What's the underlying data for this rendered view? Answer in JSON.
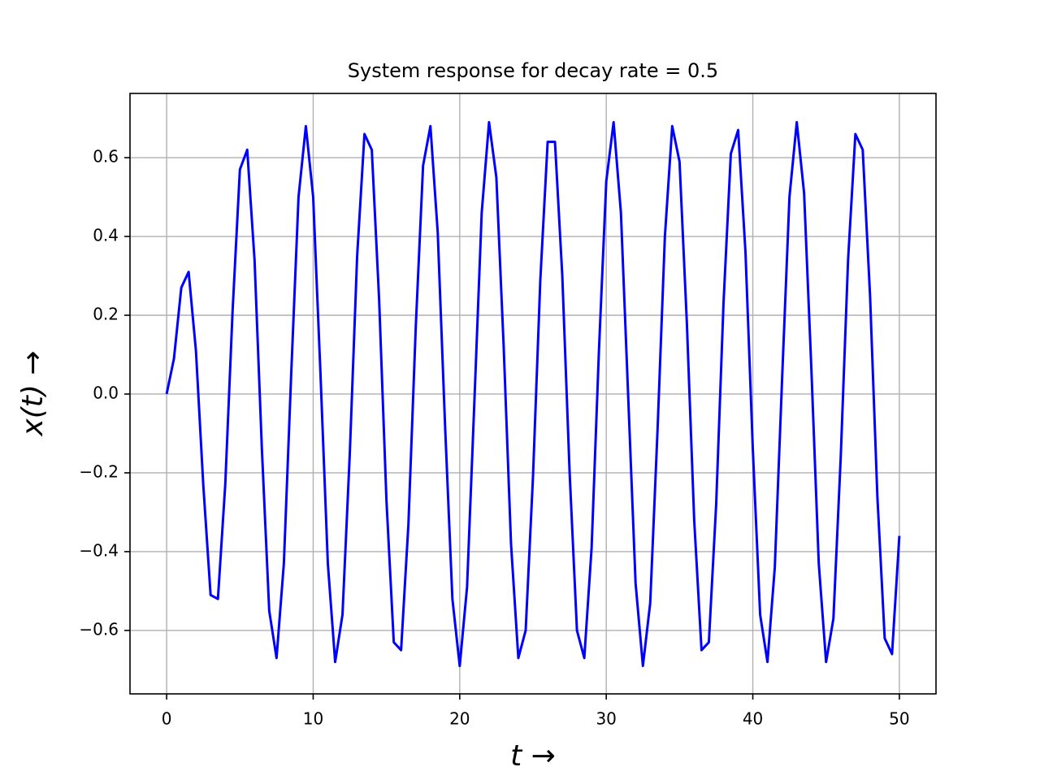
{
  "chart_data": {
    "type": "line",
    "title": "System response for decay rate = 0.5",
    "xlabel": "t →",
    "ylabel": "x(t) →",
    "x": [
      0,
      0.5,
      1,
      1.5,
      2,
      2.5,
      3,
      3.5,
      4,
      4.5,
      5,
      5.5,
      6,
      6.5,
      7,
      7.5,
      8,
      8.5,
      9,
      9.5,
      10,
      10.5,
      11,
      11.5,
      12,
      12.5,
      13,
      13.5,
      14,
      14.5,
      15,
      15.5,
      16,
      16.5,
      17,
      17.5,
      18,
      18.5,
      19,
      19.5,
      20,
      20.5,
      21,
      21.5,
      22,
      22.5,
      23,
      23.5,
      24,
      24.5,
      25,
      25.5,
      26,
      26.5,
      27,
      27.5,
      28,
      28.5,
      29,
      29.5,
      30,
      30.5,
      31,
      31.5,
      32,
      32.5,
      33,
      33.5,
      34,
      34.5,
      35,
      35.5,
      36,
      36.5,
      37,
      37.5,
      38,
      38.5,
      39,
      39.5,
      40,
      40.5,
      41,
      41.5,
      42,
      42.5,
      43,
      43.5,
      44,
      44.5,
      45,
      45.5,
      46,
      46.5,
      47,
      47.5,
      48,
      48.5,
      49,
      49.5,
      50
    ],
    "series": [
      {
        "color": "#0000ff",
        "values": [
          0,
          0.09,
          0.27,
          0.31,
          0.11,
          -0.23,
          -0.51,
          -0.52,
          -0.23,
          0.21,
          0.57,
          0.62,
          0.34,
          -0.14,
          -0.55,
          -0.67,
          -0.43,
          0.05,
          0.5,
          0.68,
          0.5,
          0.05,
          -0.43,
          -0.68,
          -0.56,
          -0.15,
          0.35,
          0.66,
          0.62,
          0.24,
          -0.27,
          -0.63,
          -0.65,
          -0.33,
          0.17,
          0.58,
          0.68,
          0.41,
          -0.08,
          -0.52,
          -0.69,
          -0.49,
          -0.02,
          0.46,
          0.69,
          0.55,
          0.12,
          -0.38,
          -0.67,
          -0.6,
          -0.21,
          0.29,
          0.64,
          0.64,
          0.3,
          -0.2,
          -0.6,
          -0.67,
          -0.39,
          0.11,
          0.54,
          0.69,
          0.46,
          -0.01,
          -0.48,
          -0.69,
          -0.53,
          -0.09,
          0.4,
          0.68,
          0.59,
          0.18,
          -0.32,
          -0.65,
          -0.63,
          -0.28,
          0.23,
          0.61,
          0.67,
          0.36,
          -0.14,
          -0.56,
          -0.68,
          -0.44,
          0.04,
          0.5,
          0.69,
          0.51,
          0.06,
          -0.43,
          -0.68,
          -0.57,
          -0.16,
          0.34,
          0.66,
          0.62,
          0.25,
          -0.26,
          -0.62,
          -0.66,
          -0.36
        ]
      }
    ],
    "xlim": [
      -2.5,
      52.5
    ],
    "ylim": [
      -0.761,
      0.763
    ],
    "xticks": [
      0,
      10,
      20,
      30,
      40,
      50
    ],
    "yticks": [
      {
        "value": -0.6,
        "label": "−0.6"
      },
      {
        "value": -0.4,
        "label": "−0.4"
      },
      {
        "value": -0.2,
        "label": "−0.2"
      },
      {
        "value": 0,
        "label": "0.0"
      },
      0.2,
      0.4,
      0.6
    ],
    "grid": true
  }
}
